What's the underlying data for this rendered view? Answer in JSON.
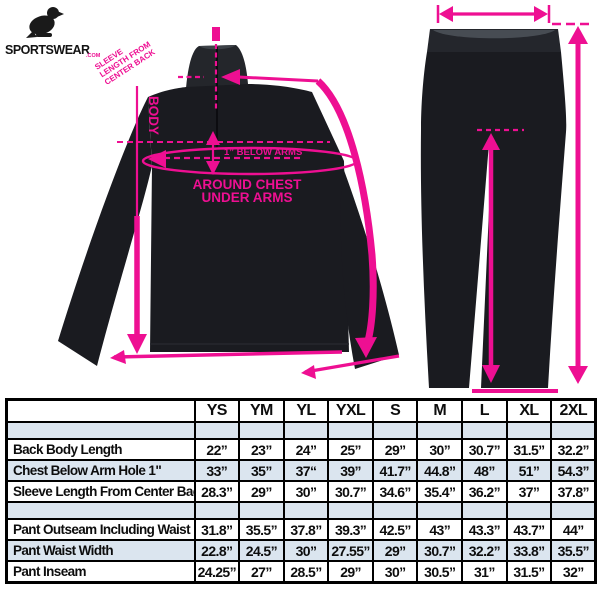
{
  "logo": {
    "brand_text": "SPORTSWEAR",
    "tagline": ".COM"
  },
  "jacket_diagram": {
    "sleeve_note_line1": "SLEEVE",
    "sleeve_note_line2": "LENGTH FROM",
    "sleeve_note_line3": "CENTER BACK",
    "body_label": "BODY",
    "below_arms_label": "1” BELOW ARMS",
    "chest_label_line1": "AROUND CHEST",
    "chest_label_line2": "UNDER ARMS"
  },
  "size_table": {
    "header": [
      "",
      "YS",
      "YM",
      "YL",
      "YXL",
      "S",
      "M",
      "L",
      "XL",
      "2XL"
    ],
    "rows": [
      {
        "label": "",
        "values": [
          "",
          "",
          "",
          "",
          "",
          "",
          "",
          "",
          ""
        ],
        "empty": true,
        "shade": true
      },
      {
        "label": "Back Body Length",
        "values": [
          "22”",
          "23”",
          "24”",
          "25”",
          "29”",
          "30”",
          "30.7”",
          "31.5”",
          "32.2”"
        ],
        "empty": false,
        "shade": false
      },
      {
        "label": "Chest Below Arm Hole 1\"",
        "values": [
          "33”",
          "35”",
          "37“",
          "39”",
          "41.7”",
          "44.8”",
          "48”",
          "51”",
          "54.3”"
        ],
        "empty": false,
        "shade": true
      },
      {
        "label": "Sleeve Length From Center Back",
        "values": [
          "28.3”",
          "29”",
          "30”",
          "30.7”",
          "34.6”",
          "35.4”",
          "36.2”",
          "37”",
          "37.8”"
        ],
        "empty": false,
        "shade": false
      },
      {
        "label": "",
        "values": [
          "",
          "",
          "",
          "",
          "",
          "",
          "",
          "",
          ""
        ],
        "empty": true,
        "shade": true
      },
      {
        "label": "Pant Outseam Including Waist",
        "values": [
          "31.8”",
          "35.5”",
          "37.8”",
          "39.3”",
          "42.5”",
          "43”",
          "43.3”",
          "43.7”",
          "44”"
        ],
        "empty": false,
        "shade": false
      },
      {
        "label": "Pant Waist Width",
        "values": [
          "22.8”",
          "24.5”",
          "30”",
          "27.55”",
          "29”",
          "30.7”",
          "32.2”",
          "33.8”",
          "35.5”"
        ],
        "empty": false,
        "shade": true
      },
      {
        "label": "Pant Inseam",
        "values": [
          "24.25”",
          "27”",
          "28.5”",
          "29”",
          "30”",
          "30.5”",
          "31”",
          "31.5”",
          "32”"
        ],
        "empty": false,
        "shade": false
      }
    ]
  },
  "colors": {
    "accent_pink": "#ee0f92",
    "shade_blue": "#dbe5ef",
    "garment_black": "#1a1b20",
    "table_border": "#000000"
  }
}
